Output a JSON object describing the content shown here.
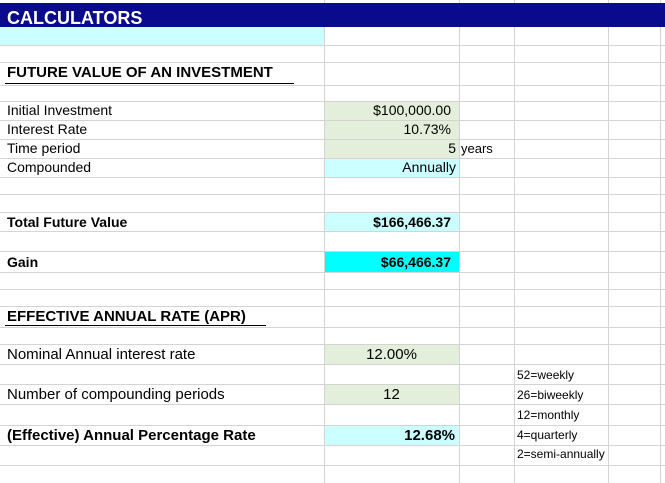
{
  "sheet": {
    "title": "CALCULATORS",
    "colors": {
      "title_bar": "#0a0a8c",
      "light_cyan": "#ccffff",
      "light_green": "#e3eedb",
      "bright_cyan": "#00ffff",
      "gridline": "#d4d4d4"
    }
  },
  "future_value": {
    "heading": "FUTURE VALUE OF AN INVESTMENT",
    "rows": [
      {
        "label": "Initial Investment",
        "value": "$100,000.00"
      },
      {
        "label": "Interest Rate",
        "value": "10.73%"
      },
      {
        "label": "Time period",
        "value": "5",
        "unit": "years"
      },
      {
        "label": "Compounded",
        "value": "Annually"
      }
    ],
    "total_label": "Total Future Value",
    "total_value": "$166,466.37",
    "gain_label": "Gain",
    "gain_value": "$66,466.37"
  },
  "apr": {
    "heading": "EFFECTIVE ANNUAL RATE (APR)",
    "nominal_label": "Nominal Annual interest rate",
    "nominal_value": "12.00%",
    "periods_label": "Number of compounding periods",
    "periods_value": "12",
    "effective_label": "(Effective) Annual Percentage Rate",
    "effective_value": "12.68%",
    "notes": [
      "52=weekly",
      "26=biweekly",
      "12=monthly",
      "4=quarterly",
      "2=semi-annually"
    ]
  }
}
